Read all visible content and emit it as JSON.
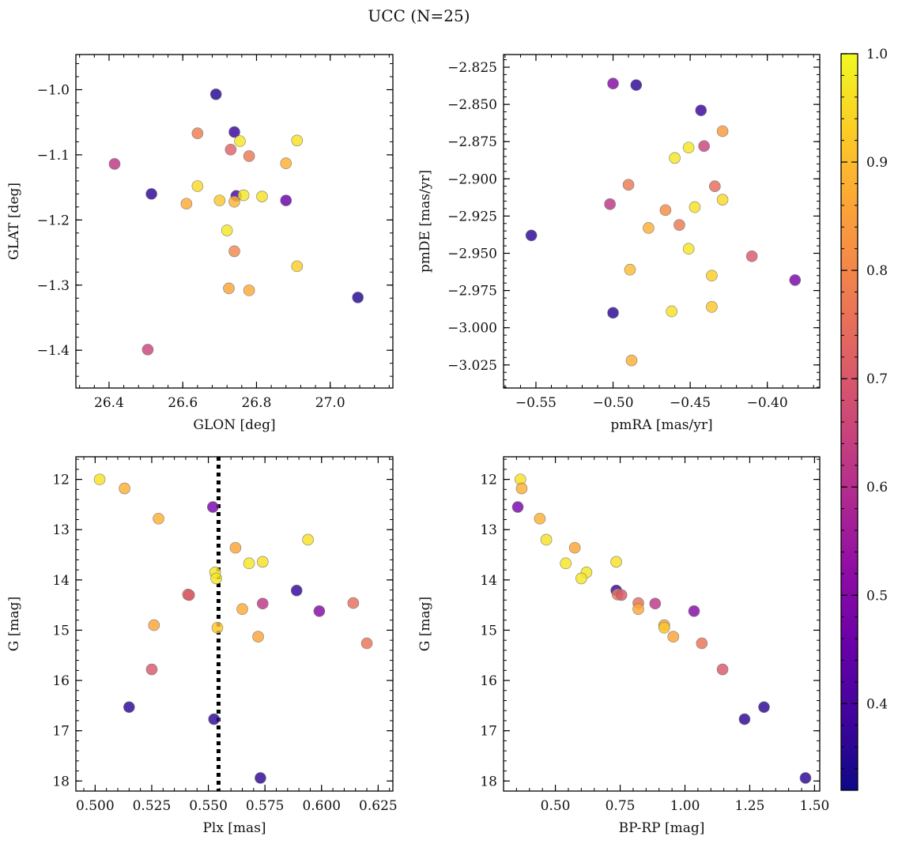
{
  "figure": {
    "title": "UCC (N=25)"
  },
  "colorbar": {
    "colormap": "plasma",
    "range": [
      0.32,
      1.0
    ],
    "ticks": [
      0.4,
      0.5,
      0.6,
      0.7,
      0.8,
      0.9,
      1.0
    ],
    "tick_labels": [
      "0.4",
      "0.5",
      "0.6",
      "0.7",
      "0.8",
      "0.9",
      "1.0"
    ]
  },
  "chart_data": [
    {
      "type": "scatter",
      "id": "glon-glat",
      "xlabel": "GLON [deg]",
      "ylabel": "GLAT [deg]",
      "xlim": [
        26.31,
        27.17
      ],
      "ylim": [
        -1.458,
        -0.946
      ],
      "xticks": [
        26.4,
        26.6,
        26.8,
        27.0
      ],
      "xtick_labels": [
        "26.4",
        "26.6",
        "26.8",
        "27.0"
      ],
      "yticks": [
        -1.0,
        -1.1,
        -1.2,
        -1.3,
        -1.4
      ],
      "ytick_labels": [
        "−1.0",
        "−1.1",
        "−1.2",
        "−1.3",
        "−1.4"
      ],
      "xminor_step": 0.04,
      "yminor_step": 0.02,
      "x": [
        26.69,
        26.74,
        26.64,
        26.415,
        26.755,
        26.73,
        26.78,
        26.91,
        26.88,
        26.515,
        26.64,
        26.745,
        26.765,
        26.815,
        26.88,
        26.61,
        26.7,
        26.74,
        26.72,
        26.74,
        26.91,
        26.725,
        26.78,
        27.075,
        26.505
      ],
      "y": [
        -1.007,
        -1.065,
        -1.067,
        -1.114,
        -1.079,
        -1.092,
        -1.102,
        -1.078,
        -1.113,
        -1.16,
        -1.148,
        -1.163,
        -1.162,
        -1.164,
        -1.17,
        -1.175,
        -1.17,
        -1.172,
        -1.216,
        -1.248,
        -1.271,
        -1.305,
        -1.308,
        -1.319,
        -1.399
      ],
      "c": [
        0.35,
        0.38,
        0.78,
        0.62,
        0.97,
        0.72,
        0.77,
        0.96,
        0.88,
        0.36,
        0.95,
        0.4,
        0.97,
        0.96,
        0.45,
        0.87,
        0.92,
        0.89,
        0.97,
        0.8,
        0.93,
        0.86,
        0.87,
        0.35,
        0.65
      ],
      "reference_line": null
    },
    {
      "type": "scatter",
      "id": "pmra-pmde",
      "xlabel": "pmRA [mas/yr]",
      "ylabel": "pmDE [mas/yr]",
      "xlim": [
        -0.571,
        -0.366
      ],
      "ylim": [
        -3.0405,
        -2.8165
      ],
      "xticks": [
        -0.55,
        -0.5,
        -0.45,
        -0.4
      ],
      "xtick_labels": [
        "−0.55",
        "−0.50",
        "−0.45",
        "−0.40"
      ],
      "yticks": [
        -2.825,
        -2.85,
        -2.875,
        -2.9,
        -2.925,
        -2.95,
        -2.975,
        -3.0,
        -3.025
      ],
      "ytick_labels": [
        "−2.825",
        "−2.850",
        "−2.875",
        "−2.900",
        "−2.925",
        "−2.950",
        "−2.975",
        "−3.000",
        "−3.025"
      ],
      "xminor_step": 0.01,
      "yminor_step": 0.005,
      "x": [
        -0.5,
        -0.485,
        -0.443,
        -0.429,
        -0.441,
        -0.451,
        -0.46,
        -0.49,
        -0.434,
        -0.502,
        -0.429,
        -0.447,
        -0.466,
        -0.477,
        -0.457,
        -0.553,
        -0.451,
        -0.41,
        -0.382,
        -0.489,
        -0.436,
        -0.436,
        -0.462,
        -0.5,
        -0.488
      ],
      "y": [
        -2.836,
        -2.837,
        -2.854,
        -2.868,
        -2.878,
        -2.879,
        -2.886,
        -2.904,
        -2.905,
        -2.917,
        -2.914,
        -2.919,
        -2.921,
        -2.933,
        -2.931,
        -2.938,
        -2.947,
        -2.952,
        -2.968,
        -2.961,
        -2.965,
        -2.986,
        -2.989,
        -2.99,
        -3.022
      ],
      "c": [
        0.5,
        0.36,
        0.38,
        0.84,
        0.65,
        0.97,
        0.97,
        0.77,
        0.74,
        0.62,
        0.95,
        0.96,
        0.81,
        0.88,
        0.77,
        0.36,
        0.97,
        0.7,
        0.48,
        0.9,
        0.93,
        0.92,
        0.96,
        0.36,
        0.88
      ],
      "reference_line": null
    },
    {
      "type": "scatter",
      "id": "plx-g",
      "xlabel": "Plx [mas]",
      "ylabel": "G [mag]",
      "xlim": [
        0.4915,
        0.6315
      ],
      "ylim": [
        18.2,
        11.55
      ],
      "y_inverted": true,
      "xticks": [
        0.5,
        0.525,
        0.55,
        0.575,
        0.6,
        0.625
      ],
      "xtick_labels": [
        "0.500",
        "0.525",
        "0.550",
        "0.575",
        "0.600",
        "0.625"
      ],
      "yticks": [
        12,
        13,
        14,
        15,
        16,
        17,
        18
      ],
      "ytick_labels": [
        "12",
        "13",
        "14",
        "15",
        "16",
        "17",
        "18"
      ],
      "xminor_step": 0.005,
      "yminor_step": 0.2,
      "x": [
        0.502,
        0.513,
        0.528,
        0.552,
        0.594,
        0.562,
        0.568,
        0.574,
        0.553,
        0.5535,
        0.589,
        0.541,
        0.5415,
        0.599,
        0.574,
        0.614,
        0.565,
        0.526,
        0.554,
        0.572,
        0.62,
        0.525,
        0.515,
        0.5525,
        0.573
      ],
      "y": [
        12.0,
        12.18,
        12.78,
        12.55,
        13.2,
        13.36,
        13.67,
        13.64,
        13.85,
        13.97,
        14.21,
        14.29,
        14.3,
        14.62,
        14.47,
        14.46,
        14.58,
        14.9,
        14.95,
        15.13,
        15.26,
        15.78,
        16.53,
        16.77,
        17.94
      ],
      "c": [
        0.96,
        0.88,
        0.88,
        0.48,
        0.96,
        0.86,
        0.97,
        0.96,
        0.97,
        0.97,
        0.37,
        0.78,
        0.7,
        0.5,
        0.62,
        0.75,
        0.87,
        0.86,
        0.92,
        0.86,
        0.76,
        0.7,
        0.36,
        0.36,
        0.36
      ],
      "reference_line": {
        "orientation": "vertical",
        "value": 0.5545,
        "style": "dotted"
      }
    },
    {
      "type": "scatter",
      "id": "bprp-g",
      "xlabel": "BP-RP [mag]",
      "ylabel": "G [mag]",
      "xlim": [
        0.3,
        1.52
      ],
      "ylim": [
        18.2,
        11.55
      ],
      "y_inverted": true,
      "xticks": [
        0.5,
        0.75,
        1.0,
        1.25,
        1.5
      ],
      "xtick_labels": [
        "0.50",
        "0.75",
        "1.00",
        "1.25",
        "1.50"
      ],
      "yticks": [
        12,
        13,
        14,
        15,
        16,
        17,
        18
      ],
      "ytick_labels": [
        "12",
        "13",
        "14",
        "15",
        "16",
        "17",
        "18"
      ],
      "xminor_step": 0.05,
      "yminor_step": 0.2,
      "x": [
        0.365,
        0.37,
        0.355,
        0.44,
        0.465,
        0.575,
        0.54,
        0.735,
        0.62,
        0.6,
        0.735,
        0.74,
        0.755,
        1.035,
        0.885,
        0.82,
        0.82,
        0.92,
        0.92,
        0.955,
        1.065,
        1.145,
        1.305,
        1.23,
        1.465
      ],
      "y": [
        12.0,
        12.18,
        12.55,
        12.78,
        13.2,
        13.36,
        13.67,
        13.64,
        13.85,
        13.97,
        14.21,
        14.29,
        14.3,
        14.62,
        14.47,
        14.46,
        14.58,
        14.9,
        14.95,
        15.13,
        15.26,
        15.78,
        16.53,
        16.77,
        17.94
      ],
      "c": [
        0.96,
        0.88,
        0.48,
        0.88,
        0.96,
        0.86,
        0.97,
        0.96,
        0.97,
        0.97,
        0.37,
        0.78,
        0.7,
        0.5,
        0.62,
        0.75,
        0.87,
        0.86,
        0.92,
        0.86,
        0.76,
        0.7,
        0.36,
        0.36,
        0.36
      ],
      "reference_line": null
    }
  ]
}
